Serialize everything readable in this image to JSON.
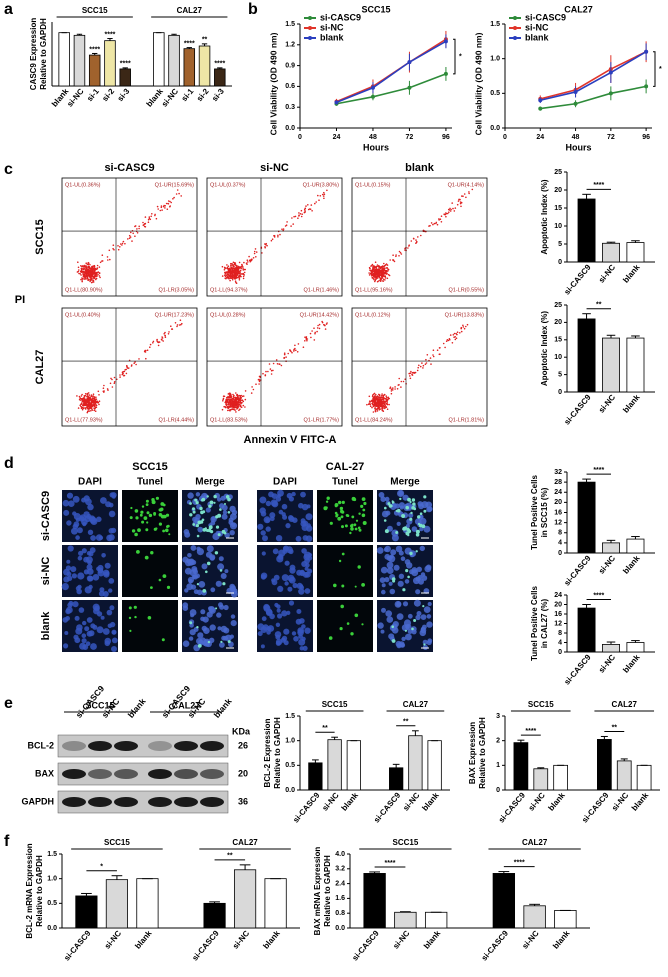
{
  "chart_data": [
    {
      "type": "bar",
      "ylabel": [
        "CASC9 Expression",
        "Relative to GAPDH"
      ],
      "ylim": [
        0,
        1.2
      ],
      "categories": [
        "blank",
        "si-NC",
        "si-1",
        "si-2",
        "si-3"
      ],
      "colors": [
        "#ffffff",
        "#d9d9d9",
        "#a0622d",
        "#eee6a6",
        "#3b2716"
      ],
      "groups": [
        {
          "name": "SCC15",
          "values": [
            1,
            0.95,
            0.58,
            0.85,
            0.32
          ],
          "errors": [
            0,
            0.02,
            0.03,
            0.04,
            0.02
          ],
          "stars": [
            null,
            null,
            "****",
            "****",
            "****"
          ]
        },
        {
          "name": "CAL27",
          "values": [
            1,
            0.95,
            0.7,
            0.75,
            0.32
          ],
          "errors": [
            0,
            0.02,
            0.02,
            0.04,
            0.02
          ],
          "stars": [
            null,
            null,
            "****",
            "**",
            "****"
          ]
        }
      ]
    },
    {
      "type": "line",
      "title": "SCC15",
      "xlabel": "Hours",
      "ylabel": "Cell Viability (OD 490 nm)",
      "x": [
        24,
        48,
        72,
        96
      ],
      "xlim": [
        0,
        100
      ],
      "xticks": [
        0,
        24,
        48,
        72,
        96
      ],
      "ylim": [
        0,
        1.5
      ],
      "yticks": [
        {
          "value": 0,
          "label": "0.0"
        },
        0.3,
        0.6,
        0.9,
        1.2,
        1.5
      ],
      "annotation": "*",
      "series": [
        {
          "name": "si-CASC9",
          "color": "#2e8b3a",
          "values": [
            0.35,
            0.45,
            0.58,
            0.78
          ],
          "errors": [
            0.03,
            0.05,
            0.1,
            0.1
          ]
        },
        {
          "name": "si-NC",
          "color": "#e0352b",
          "values": [
            0.38,
            0.6,
            0.95,
            1.28
          ],
          "errors": [
            0.04,
            0.1,
            0.15,
            0.12
          ]
        },
        {
          "name": "blank",
          "color": "#2b3fbf",
          "values": [
            0.37,
            0.58,
            0.95,
            1.25
          ],
          "errors": [
            0.03,
            0.08,
            0.12,
            0.1
          ]
        }
      ]
    },
    {
      "type": "line",
      "title": "CAL27",
      "xlabel": "Hours",
      "ylabel": "Cell Viability (OD 490 nm)",
      "x": [
        24,
        48,
        72,
        96
      ],
      "xlim": [
        0,
        100
      ],
      "xticks": [
        0,
        24,
        48,
        72,
        96
      ],
      "ylim": [
        0,
        1.5
      ],
      "yticks": [
        {
          "value": 0,
          "label": "0.0"
        },
        0.5,
        {
          "value": 1,
          "label": "1.0"
        },
        1.5
      ],
      "annotation": "*",
      "series": [
        {
          "name": "si-CASC9",
          "color": "#2e8b3a",
          "values": [
            0.28,
            0.35,
            0.5,
            0.6
          ],
          "errors": [
            0.03,
            0.05,
            0.1,
            0.1
          ]
        },
        {
          "name": "si-NC",
          "color": "#e0352b",
          "values": [
            0.42,
            0.55,
            0.85,
            1.1
          ],
          "errors": [
            0.05,
            0.1,
            0.2,
            0.15
          ]
        },
        {
          "name": "blank",
          "color": "#2b3fbf",
          "values": [
            0.4,
            0.52,
            0.8,
            1.1
          ],
          "errors": [
            0.04,
            0.08,
            0.15,
            0.12
          ]
        }
      ]
    },
    {
      "type": "bar",
      "ylabel": [
        "Apoptotic Index (%)"
      ],
      "ylim": [
        0,
        25
      ],
      "yticks": [
        0,
        5,
        10,
        15,
        20,
        25
      ],
      "categories": [
        "si-CASC9",
        "si-NC",
        "blank"
      ],
      "colors": [
        "#000000",
        "#d9d9d9",
        "#ffffff"
      ],
      "groups": [
        {
          "values": [
            17.5,
            5.2,
            5.4
          ],
          "errors": [
            1.3,
            0.3,
            0.5
          ],
          "annotation": "****"
        }
      ]
    },
    {
      "type": "bar",
      "ylabel": [
        "Apoptotic Index (%)"
      ],
      "ylim": [
        0,
        25
      ],
      "yticks": [
        0,
        5,
        10,
        15,
        20,
        25
      ],
      "categories": [
        "si-CASC9",
        "si-NC",
        "blank"
      ],
      "colors": [
        "#000000",
        "#d9d9d9",
        "#ffffff"
      ],
      "groups": [
        {
          "values": [
            21,
            15.5,
            15.5
          ],
          "errors": [
            1.5,
            0.8,
            0.6
          ],
          "annotation": "**"
        }
      ]
    },
    {
      "type": "bar",
      "ylabel": [
        "Tunel Positive Cells",
        "in SCC15 (%)"
      ],
      "ylim": [
        0,
        32
      ],
      "yticks": [
        0,
        4,
        8,
        12,
        16,
        20,
        24,
        28,
        32
      ],
      "categories": [
        "si-CASC9",
        "si-NC",
        "blank"
      ],
      "colors": [
        "#000000",
        "#d9d9d9",
        "#ffffff"
      ],
      "groups": [
        {
          "values": [
            28,
            4,
            5.5
          ],
          "errors": [
            1.2,
            1,
            1
          ],
          "annotation": "****"
        }
      ]
    },
    {
      "type": "bar",
      "ylabel": [
        "Tunel Positive Cells",
        "in CAL27 (%)"
      ],
      "ylim": [
        0,
        24
      ],
      "yticks": [
        0,
        4,
        8,
        12,
        16,
        20,
        24
      ],
      "categories": [
        "si-CASC9",
        "si-NC",
        "blank"
      ],
      "colors": [
        "#000000",
        "#d9d9d9",
        "#ffffff"
      ],
      "groups": [
        {
          "values": [
            18.5,
            3.2,
            4
          ],
          "errors": [
            1.5,
            1,
            0.8
          ],
          "annotation": "****"
        }
      ]
    },
    {
      "type": "bar",
      "ylabel": [
        "BCL-2 Expression",
        "Relative to GAPDH"
      ],
      "ylim": [
        0,
        1.5
      ],
      "yticks": [
        {
          "value": 0,
          "label": "0.0"
        },
        0.5,
        {
          "value": 1,
          "label": "1.0"
        },
        1.5
      ],
      "categories": [
        "si-CASC9",
        "si-NC",
        "blank"
      ],
      "colors": [
        "#000000",
        "#d9d9d9",
        "#ffffff"
      ],
      "groups": [
        {
          "name": "SCC15",
          "values": [
            0.55,
            1.02,
            1
          ],
          "errors": [
            0.06,
            0.05,
            0
          ],
          "annotation": "**"
        },
        {
          "name": "CAL27",
          "values": [
            0.45,
            1.1,
            1
          ],
          "errors": [
            0.07,
            0.1,
            0
          ],
          "annotation": "**"
        }
      ]
    },
    {
      "type": "bar",
      "ylabel": [
        "BAX Expression",
        "Relative to GAPDH"
      ],
      "ylim": [
        0,
        3
      ],
      "yticks": [
        0,
        1,
        2,
        3
      ],
      "categories": [
        "si-CASC9",
        "si-NC",
        "blank"
      ],
      "colors": [
        "#000000",
        "#d9d9d9",
        "#ffffff"
      ],
      "groups": [
        {
          "name": "SCC15",
          "values": [
            1.92,
            0.86,
            1
          ],
          "errors": [
            0.1,
            0.04,
            0
          ],
          "annotation": "****"
        },
        {
          "name": "CAL27",
          "values": [
            2.05,
            1.18,
            1
          ],
          "errors": [
            0.12,
            0.08,
            0
          ],
          "annotation": "**"
        }
      ]
    },
    {
      "type": "bar",
      "ylabel": [
        "BCL-2 mRNA Expression",
        "Relative to GAPDH"
      ],
      "ylim": [
        0,
        1.5
      ],
      "yticks": [
        {
          "value": 0,
          "label": "0.0"
        },
        0.5,
        {
          "value": 1,
          "label": "1.0"
        },
        1.5
      ],
      "categories": [
        "si-CASC9",
        "si-NC",
        "blank"
      ],
      "colors": [
        "#000000",
        "#d9d9d9",
        "#ffffff"
      ],
      "groups": [
        {
          "name": "SCC15",
          "values": [
            0.65,
            0.98,
            1
          ],
          "errors": [
            0.05,
            0.08,
            0
          ],
          "annotation": "*"
        },
        {
          "name": "CAL27",
          "values": [
            0.5,
            1.18,
            1
          ],
          "errors": [
            0.03,
            0.1,
            0
          ],
          "annotation": "**"
        }
      ]
    },
    {
      "type": "bar",
      "ylabel": [
        "BAX mRNA Expression",
        "Relative to GAPDH"
      ],
      "ylim": [
        0,
        4
      ],
      "yticks": [
        {
          "value": 0,
          "label": "0.0"
        },
        0.8,
        1.6,
        2.4,
        3.2,
        {
          "value": 4,
          "label": "4.0"
        }
      ],
      "categories": [
        "si-CASC9",
        "si-NC",
        "blank"
      ],
      "colors": [
        "#000000",
        "#d9d9d9",
        "#ffffff"
      ],
      "groups": [
        {
          "name": "SCC15",
          "values": [
            2.95,
            0.85,
            0.85
          ],
          "errors": [
            0.08,
            0.03,
            0
          ],
          "annotation": "****"
        },
        {
          "name": "CAL27",
          "values": [
            2.95,
            1.2,
            0.95
          ],
          "errors": [
            0.1,
            0.08,
            0
          ],
          "annotation": "****"
        }
      ]
    }
  ],
  "panels": {
    "letters": [
      "a",
      "b",
      "c",
      "d",
      "e",
      "f"
    ],
    "flow": {
      "columns": [
        "si-CASC9",
        "si-NC",
        "blank"
      ],
      "rows": [
        "SCC15",
        "CAL27"
      ],
      "ylabel": "PI",
      "xlabel": "Annexin V FITC-A",
      "gates": [
        [
          [
            "Q1-UL(0.36%)",
            "Q1-UR(15.69%)",
            "Q1-LL(80.90%)",
            "Q1-LR(3.05%)"
          ],
          [
            "Q1-UL(0.37%)",
            "Q1-UR(3.80%)",
            "Q1-LL(94.37%)",
            "Q1-LR(1.46%)"
          ],
          [
            "Q1-UL(0.15%)",
            "Q1-UR(4.14%)",
            "Q1-LL(95.16%)",
            "Q1-LR(0.55%)"
          ]
        ],
        [
          [
            "Q1-UL(0.40%)",
            "Q1-UR(17.23%)",
            "Q1-LL(77.93%)",
            "Q1-LR(4.44%)"
          ],
          [
            "Q1-UL(0.28%)",
            "Q1-UR(14.42%)",
            "Q1-LL(83.53%)",
            "Q1-LR(1.77%)"
          ],
          [
            "Q1-UL(0.12%)",
            "Q1-UR(13.83%)",
            "Q1-LL(84.24%)",
            "Q1-LR(1.81%)"
          ]
        ]
      ]
    },
    "tunel": {
      "lines": [
        "SCC15",
        "CAL-27"
      ],
      "stains": [
        "DAPI",
        "Tunel",
        "Merge"
      ],
      "rows": [
        "si-CASC9",
        "si-NC",
        "blank"
      ]
    },
    "blot": {
      "lines": [
        "SCC15",
        "CAL27"
      ],
      "lanes": [
        "si-CASC9",
        "si-NC",
        "blank"
      ],
      "unit": "KDa",
      "proteins": [
        {
          "name": "BCL-2",
          "kda": "26"
        },
        {
          "name": "BAX",
          "kda": "20"
        },
        {
          "name": "GAPDH",
          "kda": "36"
        }
      ]
    }
  }
}
